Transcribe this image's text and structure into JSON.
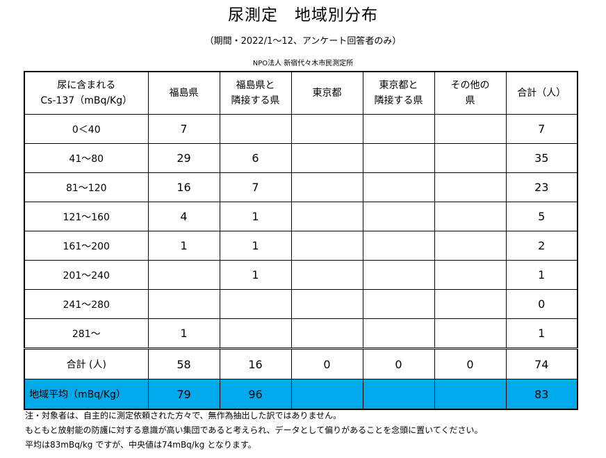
{
  "title": "尿測定　地域別分布",
  "subtitle": "（期間・2022/1～12、アンケート回答者のみ）",
  "organization": "NPO法人 新宿代々木市民測定所",
  "table": {
    "headers": [
      {
        "line1": "尿に含まれる",
        "line2": "Cs-137（mBq/Kg）"
      },
      {
        "line1": "福島県",
        "line2": ""
      },
      {
        "line1": "福島県と",
        "line2": "隣接する県"
      },
      {
        "line1": "東京都",
        "line2": ""
      },
      {
        "line1": "東京都と",
        "line2": "隣接する県"
      },
      {
        "line1": "その他の",
        "line2": "県"
      },
      {
        "line1": "合計（人）",
        "line2": ""
      }
    ],
    "rows": [
      {
        "range": "0＜40",
        "cells": [
          "7",
          "",
          "",
          "",
          "",
          "7"
        ]
      },
      {
        "range": "41～80",
        "cells": [
          "29",
          "6",
          "",
          "",
          "",
          "35"
        ]
      },
      {
        "range": "81～120",
        "cells": [
          "16",
          "7",
          "",
          "",
          "",
          "23"
        ]
      },
      {
        "range": "121～160",
        "cells": [
          "4",
          "1",
          "",
          "",
          "",
          "5"
        ]
      },
      {
        "range": "161～200",
        "cells": [
          "1",
          "1",
          "",
          "",
          "",
          "2"
        ]
      },
      {
        "range": "201～240",
        "cells": [
          "",
          "1",
          "",
          "",
          "",
          "1"
        ]
      },
      {
        "range": "241～280",
        "cells": [
          "",
          "",
          "",
          "",
          "",
          "0"
        ]
      },
      {
        "range": "281～",
        "cells": [
          "1",
          "",
          "",
          "",
          "",
          "1"
        ]
      }
    ],
    "total": {
      "label": "合計 (人)",
      "cells": [
        "58",
        "16",
        "0",
        "0",
        "0",
        "74"
      ]
    },
    "average": {
      "label": "地域平均（mBq/Kg）",
      "cells": [
        "79",
        "96",
        "",
        "",
        "",
        "83"
      ],
      "highlight_color": "#00aaea"
    }
  },
  "notes": [
    "注・対象者は、自主的に測定依頼された方々で、無作為抽出した訳ではありません。",
    "もともと放射能の防護に対する意識が高い集団であると考えられ、データとして偏りがあることを念頭に置いてください。",
    "平均は83mBq/kg ですが、中央値は74mBq/kg となります。"
  ]
}
